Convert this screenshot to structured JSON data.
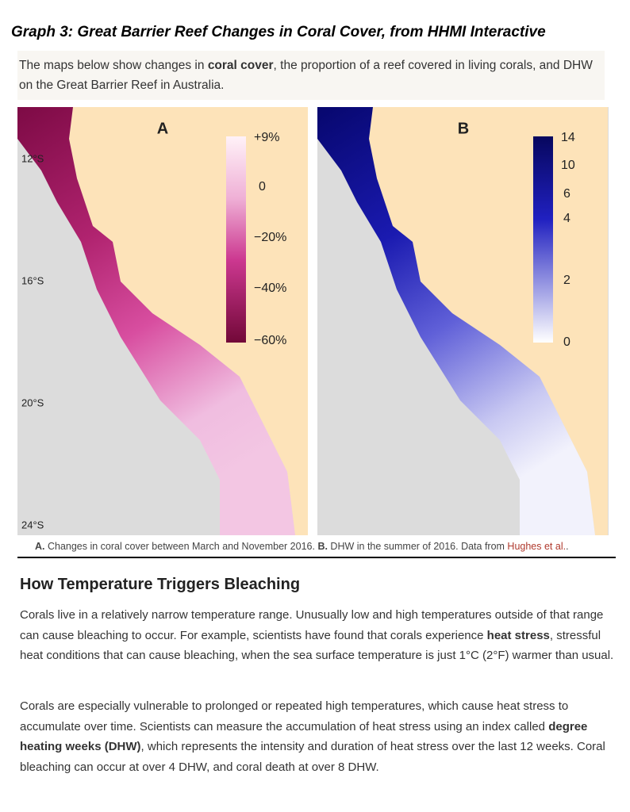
{
  "header": {
    "title": "Graph 3: Great Barrier Reef  Changes in Coral Cover, from HHMI Interactive"
  },
  "intro": [
    {
      "text": "The maps below show changes in "
    },
    {
      "text": "coral cover",
      "bold": true
    },
    {
      "text": ", the proportion of a reef covered in living corals, and DHW on the Great Barrier Reef in Australia."
    }
  ],
  "maps": {
    "latitudes": [
      "12°S",
      "16°S",
      "20°S",
      "24°S"
    ],
    "a": {
      "label": "A",
      "legend": [
        "+9%",
        "0",
        "−20%",
        "−40%",
        "−60%"
      ]
    },
    "b": {
      "label": "B",
      "legend": [
        "14",
        "10",
        "6",
        "4",
        "2",
        "0"
      ]
    }
  },
  "caption": [
    {
      "text": "A.",
      "bold": true
    },
    {
      "text": " Changes in coral cover between March and November 2016. "
    },
    {
      "text": "B.",
      "bold": true
    },
    {
      "text": " DHW in the summer of 2016. Data from "
    },
    {
      "text": "Hughes et al.",
      "link": true
    },
    {
      "text": "."
    }
  ],
  "section": {
    "heading": "How Temperature Triggers Bleaching",
    "paragraphs": [
      [
        {
          "text": "Corals live in a relatively narrow temperature range. Unusually low and high temperatures outside of that range can cause bleaching to occur. For example, scientists have found that corals experience "
        },
        {
          "text": "heat stress",
          "bold": true
        },
        {
          "text": ", stressful heat conditions that can cause bleaching, when the sea surface temperature is just 1°C (2°F) warmer than usual."
        }
      ],
      [
        {
          "text": "Corals are especially vulnerable to prolonged or repeated high temperatures, which cause heat stress to accumulate over time. Scientists can measure the accumulation of heat stress using an index called "
        },
        {
          "text": "degree heating weeks (DHW)",
          "bold": true
        },
        {
          "text": ", which represents the intensity and duration of heat stress over the last 12 weeks. Coral bleaching can occur at over 4 DHW, and coral death at over 8 DHW."
        }
      ]
    ]
  }
}
